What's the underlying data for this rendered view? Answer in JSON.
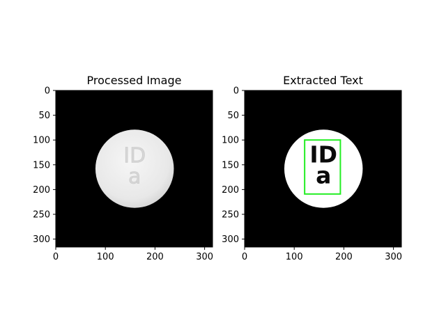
{
  "chart_data": [
    {
      "type": "image",
      "title": "Processed Image",
      "x_ticks": [
        0,
        100,
        200,
        300
      ],
      "y_ticks": [
        0,
        50,
        100,
        150,
        200,
        250,
        300
      ],
      "xlim": [
        0,
        316
      ],
      "ylim": [
        316,
        0
      ],
      "background_color": "#000000",
      "pill": {
        "center_x": 159,
        "center_y": 158,
        "radius": 79,
        "color": "#e9e9e9",
        "imprint_lines": [
          "ID",
          "a"
        ]
      }
    },
    {
      "type": "image",
      "title": "Extracted Text",
      "x_ticks": [
        0,
        100,
        200,
        300
      ],
      "y_ticks": [
        0,
        50,
        100,
        150,
        200,
        250,
        300
      ],
      "xlim": [
        0,
        316
      ],
      "ylim": [
        316,
        0
      ],
      "background_color": "#000000",
      "pill": {
        "center_x": 159,
        "center_y": 158,
        "radius": 79,
        "color": "#ffffff",
        "imprint_lines": [
          "ID",
          "a"
        ]
      },
      "bounding_box": {
        "x_min": 121,
        "y_min": 100,
        "x_max": 193,
        "y_max": 209,
        "color": "#22ee22"
      }
    }
  ]
}
